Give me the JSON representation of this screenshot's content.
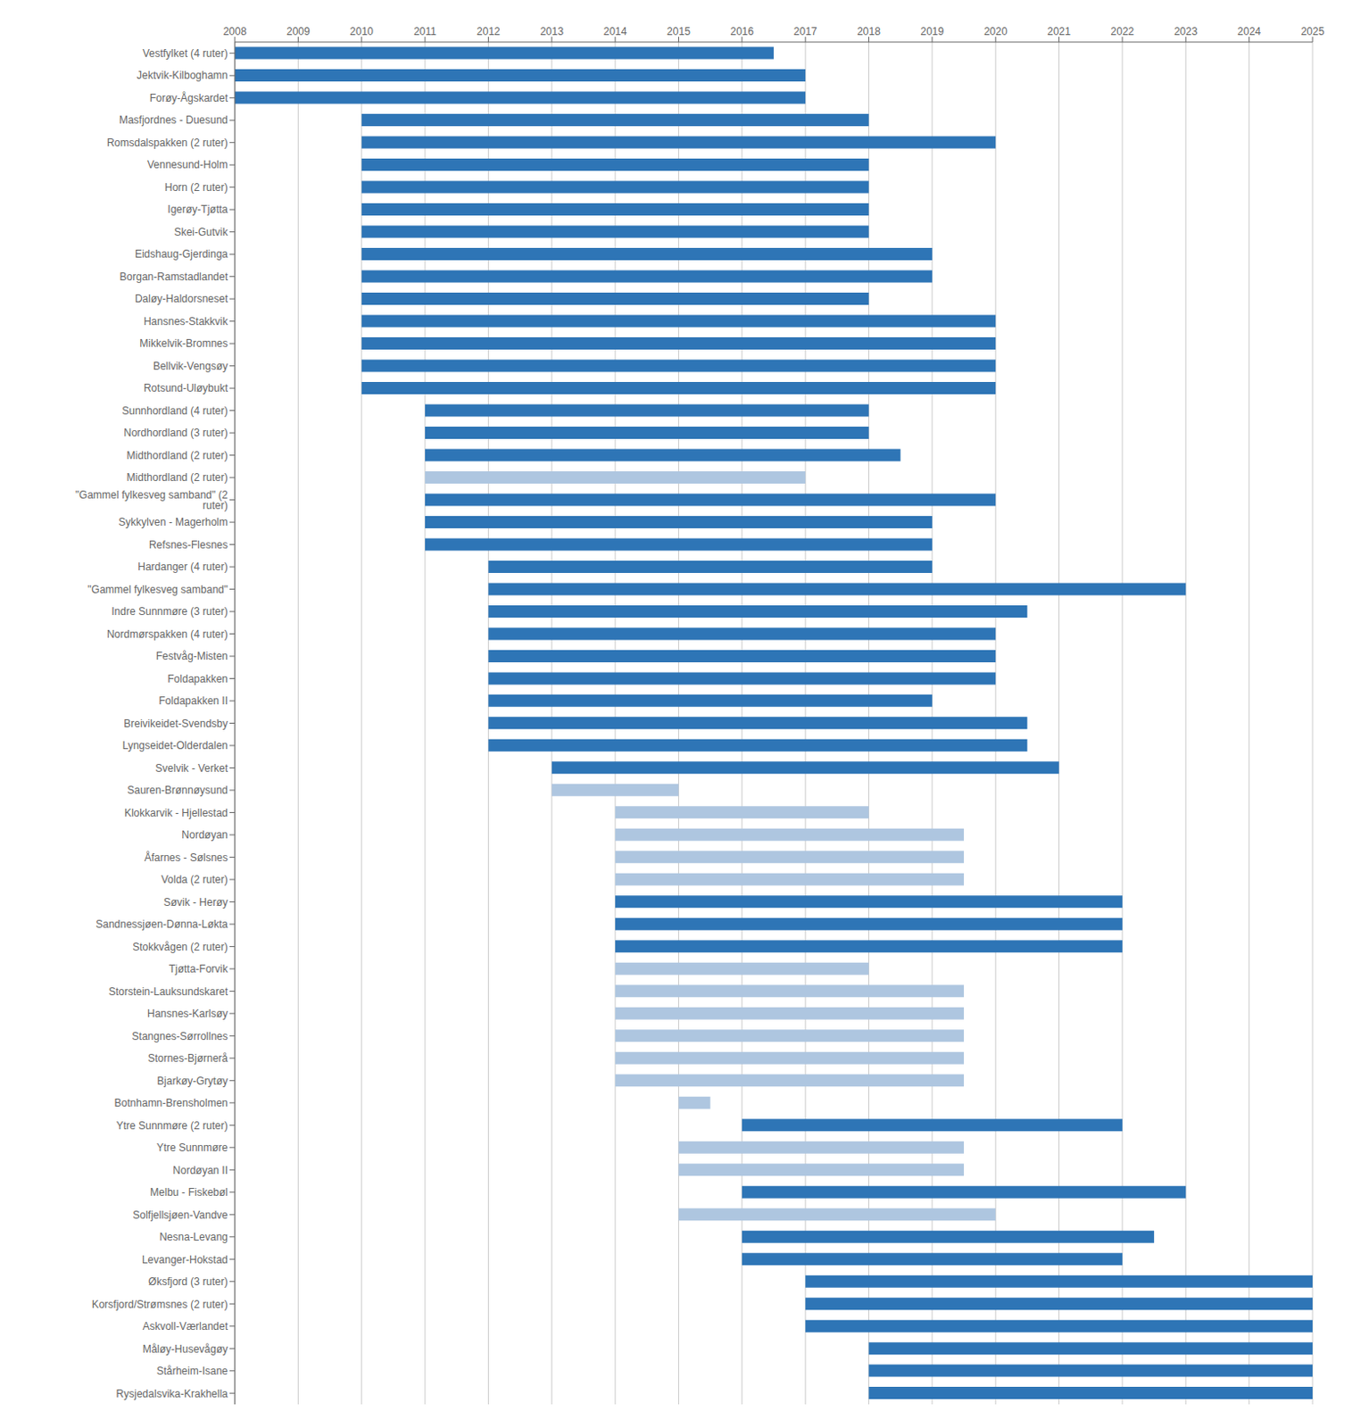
{
  "chart_data": {
    "type": "bar",
    "orientation": "horizontal",
    "grid": true,
    "xlim": [
      2008,
      2025
    ],
    "xticks": [
      2008,
      2009,
      2010,
      2011,
      2012,
      2013,
      2014,
      2015,
      2016,
      2017,
      2018,
      2019,
      2020,
      2021,
      2022,
      2023,
      2024,
      2025
    ],
    "categories": [
      "Vestfylket (4 ruter)",
      "Jektvik-Kilboghamn",
      "Forøy-Ågskardet",
      "Masfjordnes - Duesund",
      "Romsdalspakken (2 ruter)",
      "Vennesund-Holm",
      "Horn (2 ruter)",
      "Igerøy-Tjøtta",
      "Skei-Gutvik",
      "Eidshaug-Gjerdinga",
      "Borgan-Ramstadlandet",
      "Daløy-Haldorsneset",
      "Hansnes-Stakkvik",
      "Mikkelvik-Bromnes",
      "Bellvik-Vengsøy",
      "Rotsund-Uløybukt",
      "Sunnhordland (4 ruter)",
      "Nordhordland (3 ruter)",
      "Midthordland (2 ruter)",
      "Midthordland (2 ruter) ",
      "\"Gammel fylkesveg samband\" (2 ruter)",
      "Sykkylven - Magerholm",
      "Refsnes-Flesnes",
      "Hardanger (4 ruter)",
      "\"Gammel fylkesveg samband\"",
      "Indre Sunnmøre (3 ruter)",
      "Nordmørspakken (4 ruter)",
      "Festvåg-Misten",
      "Foldapakken",
      "Foldapakken II",
      "Breivikeidet-Svendsby",
      "Lyngseidet-Olderdalen",
      "Svelvik - Verket",
      "Sauren-Brønnøysund",
      "Klokkarvik - Hjellestad",
      "Nordøyan",
      "Åfarnes - Sølsnes",
      "Volda (2 ruter)",
      "Søvik - Herøy",
      "Sandnessjøen-Dønna-Løkta",
      "Stokkvågen (2 ruter)",
      "Tjøtta-Forvik",
      "Storstein-Lauksundskaret",
      "Hansnes-Karlsøy",
      "Stangnes-Sørrollnes",
      "Stornes-Bjørnerå",
      "Bjarkøy-Grytøy",
      "Botnhamn-Brensholmen",
      "Ytre Sunnmøre (2 ruter)",
      "Ytre Sunnmøre",
      "Nordøyan II",
      "Melbu - Fiskebøl",
      "Solfjellsjøen-Vandve",
      "Nesna-Levang",
      "Levanger-Hokstad",
      "Øksfjord (3 ruter)",
      "Korsfjord/Strømsnes (2 ruter)",
      "Askvoll-Værlandet",
      "Måløy-Husevågøy",
      "Stårheim-Isane",
      "Rysjedalsvika-Krakhella"
    ],
    "values": [
      [
        2008,
        2016.5
      ],
      [
        2008,
        2017.0
      ],
      [
        2008,
        2017.0
      ],
      [
        2010,
        2018.0
      ],
      [
        2010,
        2020.0
      ],
      [
        2010,
        2018.0
      ],
      [
        2010,
        2018.0
      ],
      [
        2010,
        2018.0
      ],
      [
        2010,
        2018.0
      ],
      [
        2010,
        2019.0
      ],
      [
        2010,
        2019.0
      ],
      [
        2010,
        2018.0
      ],
      [
        2010,
        2020.0
      ],
      [
        2010,
        2020.0
      ],
      [
        2010,
        2020.0
      ],
      [
        2010,
        2020.0
      ],
      [
        2011,
        2018.0
      ],
      [
        2011,
        2018.0
      ],
      [
        2011,
        2018.5
      ],
      [
        2011,
        2017.0
      ],
      [
        2011,
        2020.0
      ],
      [
        2011,
        2019.0
      ],
      [
        2011,
        2019.0
      ],
      [
        2012,
        2019.0
      ],
      [
        2012,
        2023.0
      ],
      [
        2012,
        2020.5
      ],
      [
        2012,
        2020.0
      ],
      [
        2012,
        2020.0
      ],
      [
        2012,
        2020.0
      ],
      [
        2012,
        2019.0
      ],
      [
        2012,
        2020.5
      ],
      [
        2012,
        2020.5
      ],
      [
        2013,
        2021.0
      ],
      [
        2013,
        2015.0
      ],
      [
        2014,
        2018.0
      ],
      [
        2014,
        2019.5
      ],
      [
        2014,
        2019.5
      ],
      [
        2014,
        2019.5
      ],
      [
        2014,
        2022.0
      ],
      [
        2014,
        2022.0
      ],
      [
        2014,
        2022.0
      ],
      [
        2014,
        2018.0
      ],
      [
        2014,
        2019.5
      ],
      [
        2014,
        2019.5
      ],
      [
        2014,
        2019.5
      ],
      [
        2014,
        2019.5
      ],
      [
        2014,
        2019.5
      ],
      [
        2015,
        2015.5
      ],
      [
        2016,
        2022.0
      ],
      [
        2015,
        2019.5
      ],
      [
        2015,
        2019.5
      ],
      [
        2016,
        2023.0
      ],
      [
        2015,
        2020.0
      ],
      [
        2016,
        2022.5
      ],
      [
        2016,
        2022.0
      ],
      [
        2017,
        2025
      ],
      [
        2017,
        2025
      ],
      [
        2017,
        2025
      ],
      [
        2018,
        2025
      ],
      [
        2018,
        2025
      ],
      [
        2018,
        2025
      ]
    ],
    "colors": [
      "#2e75b6",
      "#2e75b6",
      "#2e75b6",
      "#2e75b6",
      "#2e75b6",
      "#2e75b6",
      "#2e75b6",
      "#2e75b6",
      "#2e75b6",
      "#2e75b6",
      "#2e75b6",
      "#2e75b6",
      "#2e75b6",
      "#2e75b6",
      "#2e75b6",
      "#2e75b6",
      "#2e75b6",
      "#2e75b6",
      "#2e75b6",
      "#aec6e0",
      "#2e75b6",
      "#2e75b6",
      "#2e75b6",
      "#2e75b6",
      "#2e75b6",
      "#2e75b6",
      "#2e75b6",
      "#2e75b6",
      "#2e75b6",
      "#2e75b6",
      "#2e75b6",
      "#2e75b6",
      "#2e75b6",
      "#aec6e0",
      "#aec6e0",
      "#aec6e0",
      "#aec6e0",
      "#aec6e0",
      "#2e75b6",
      "#2e75b6",
      "#2e75b6",
      "#aec6e0",
      "#aec6e0",
      "#aec6e0",
      "#aec6e0",
      "#aec6e0",
      "#aec6e0",
      "#aec6e0",
      "#2e75b6",
      "#aec6e0",
      "#aec6e0",
      "#2e75b6",
      "#aec6e0",
      "#2e75b6",
      "#2e75b6",
      "#2e75b6",
      "#2e75b6",
      "#2e75b6",
      "#2e75b6",
      "#2e75b6",
      "#2e75b6"
    ]
  }
}
